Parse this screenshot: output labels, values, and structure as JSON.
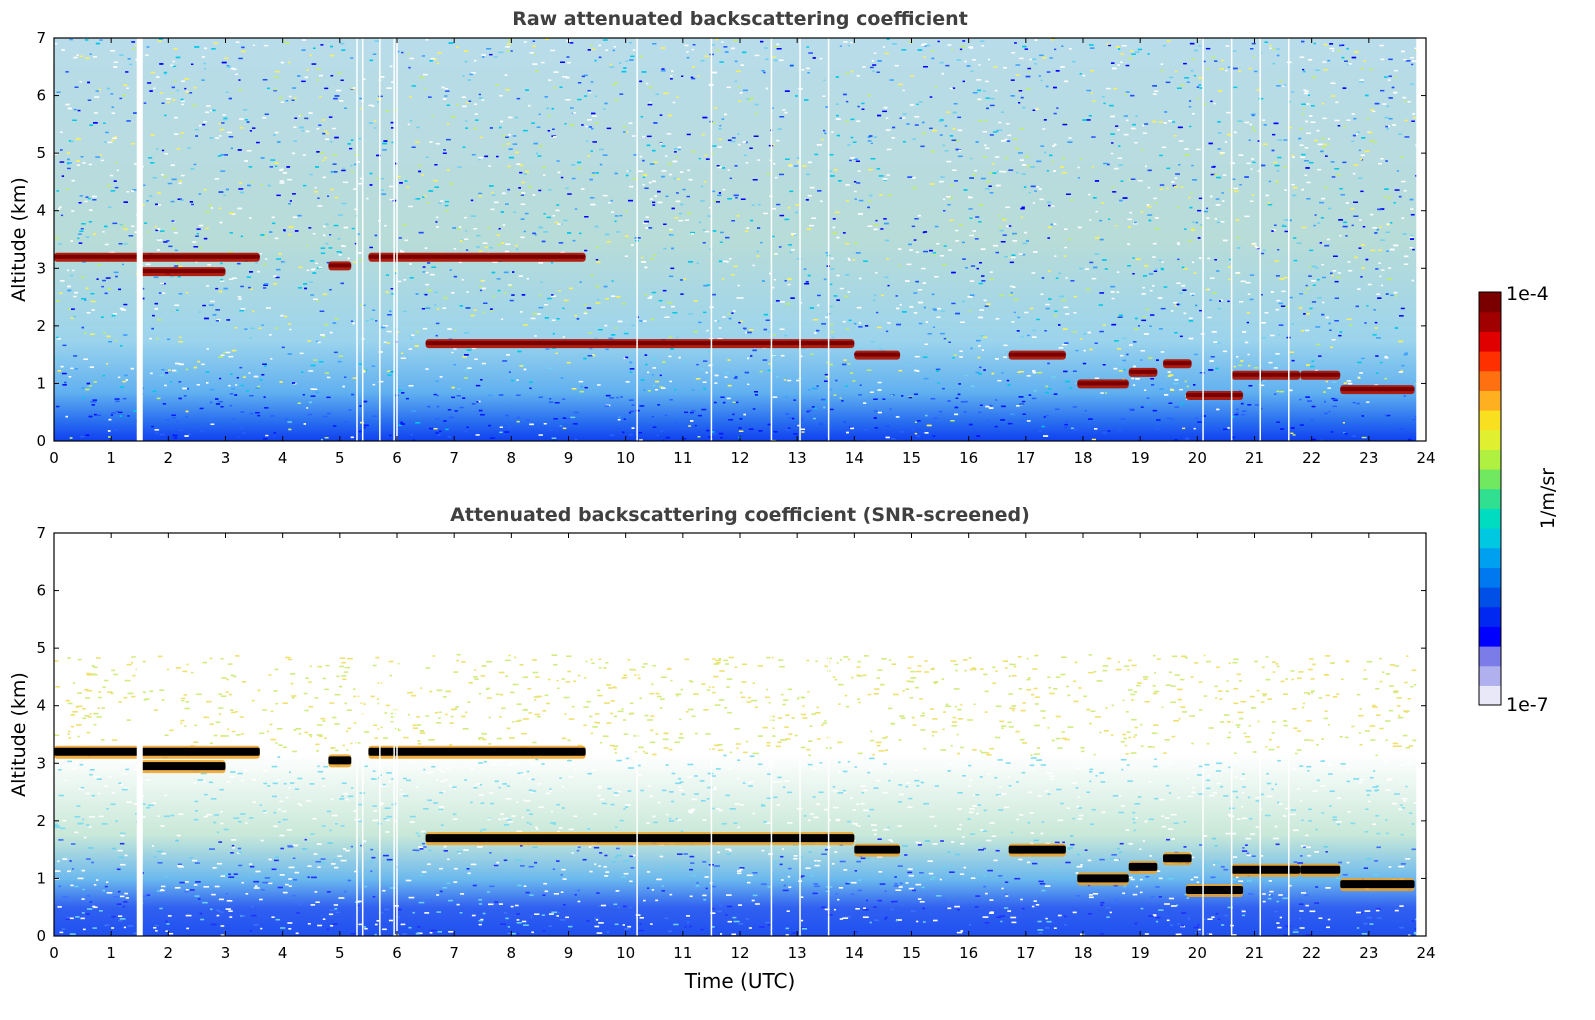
{
  "chart_data": [
    {
      "type": "heatmap",
      "title": "Raw attenuated backscattering coefficient",
      "xlabel": "",
      "ylabel": "Altitude (km)",
      "xlim": [
        0,
        24
      ],
      "ylim": [
        0,
        7
      ],
      "xticks": [
        "0",
        "1",
        "2",
        "3",
        "4",
        "5",
        "6",
        "7",
        "8",
        "9",
        "10",
        "11",
        "12",
        "13",
        "14",
        "15",
        "16",
        "17",
        "18",
        "19",
        "20",
        "21",
        "22",
        "23",
        "24"
      ],
      "yticks": [
        "0",
        "1",
        "2",
        "3",
        "4",
        "5",
        "6",
        "7"
      ],
      "data_gaps_hours": [
        1.5,
        5.3,
        5.4,
        5.7,
        5.95,
        6.0,
        10.2,
        11.5,
        12.55,
        13.05,
        13.55,
        20.1,
        20.6,
        21.1,
        21.6
      ],
      "cloud_layers": [
        {
          "t_start": 0.0,
          "t_end": 3.6,
          "altitude_km": 3.2
        },
        {
          "t_start": 1.5,
          "t_end": 3.0,
          "altitude_km": 2.95
        },
        {
          "t_start": 4.8,
          "t_end": 5.2,
          "altitude_km": 3.05
        },
        {
          "t_start": 5.5,
          "t_end": 9.3,
          "altitude_km": 3.2
        },
        {
          "t_start": 6.5,
          "t_end": 14.0,
          "altitude_km": 1.7
        },
        {
          "t_start": 14.0,
          "t_end": 14.8,
          "altitude_km": 1.5
        },
        {
          "t_start": 16.7,
          "t_end": 17.7,
          "altitude_km": 1.5
        },
        {
          "t_start": 17.9,
          "t_end": 18.8,
          "altitude_km": 1.0
        },
        {
          "t_start": 18.8,
          "t_end": 19.3,
          "altitude_km": 1.2
        },
        {
          "t_start": 19.4,
          "t_end": 19.9,
          "altitude_km": 1.35
        },
        {
          "t_start": 19.8,
          "t_end": 20.8,
          "altitude_km": 0.8
        },
        {
          "t_start": 20.6,
          "t_end": 21.8,
          "altitude_km": 1.15
        },
        {
          "t_start": 21.8,
          "t_end": 22.5,
          "altitude_km": 1.15
        },
        {
          "t_start": 22.5,
          "t_end": 23.8,
          "altitude_km": 0.9
        }
      ]
    },
    {
      "type": "heatmap",
      "title": "Attenuated backscattering coefficient (SNR-screened)",
      "xlabel": "Time (UTC)",
      "ylabel": "Altitude (km)",
      "xlim": [
        0,
        24
      ],
      "ylim": [
        0,
        7
      ],
      "xticks": [
        "0",
        "1",
        "2",
        "3",
        "4",
        "5",
        "6",
        "7",
        "8",
        "9",
        "10",
        "11",
        "12",
        "13",
        "14",
        "15",
        "16",
        "17",
        "18",
        "19",
        "20",
        "21",
        "22",
        "23",
        "24"
      ],
      "yticks": [
        "0",
        "1",
        "2",
        "3",
        "4",
        "5",
        "6",
        "7"
      ]
    }
  ],
  "colorbar": {
    "top_label": "1e-4",
    "bottom_label": "1e-7",
    "unit_label": "1/m/sr",
    "colors": [
      "#e8e8f8",
      "#b0b0ee",
      "#7c7ce8",
      "#0000ff",
      "#0028f0",
      "#0050e8",
      "#0078f0",
      "#00a0f0",
      "#00c8e0",
      "#00dcc0",
      "#30e090",
      "#70e860",
      "#b0f040",
      "#e0f030",
      "#f8e020",
      "#ffb020",
      "#ff7010",
      "#ff3000",
      "#e00000",
      "#a00000",
      "#7a0000"
    ]
  }
}
